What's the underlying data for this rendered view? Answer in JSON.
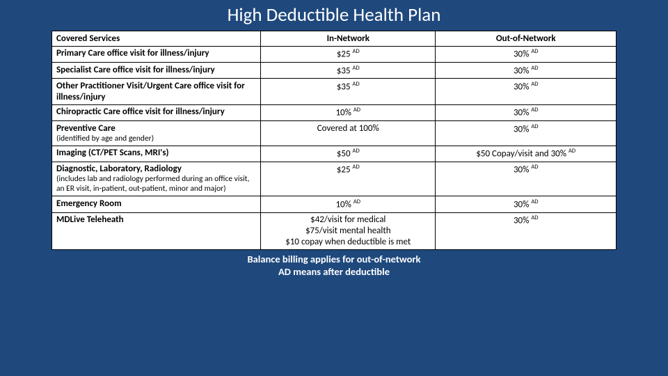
{
  "title": "High Deductible Health Plan",
  "columns": [
    "Covered Services",
    "In-Network",
    "Out-of-Network"
  ],
  "sup": "AD",
  "rows": [
    {
      "service": "Primary Care office visit for illness/injury",
      "sub": "",
      "in": "$25 ",
      "in_sup": true,
      "out": "30% ",
      "out_sup": true
    },
    {
      "service": "Specialist Care office visit for illness/injury",
      "sub": "",
      "in": "$35 ",
      "in_sup": true,
      "out": "30% ",
      "out_sup": true
    },
    {
      "service": "Other Practitioner Visit/Urgent Care office visit for illness/injury",
      "sub": "",
      "in": "$35 ",
      "in_sup": true,
      "out": "30% ",
      "out_sup": true
    },
    {
      "service": "Chiropractic Care office visit for illness/injury",
      "sub": "",
      "in": "10% ",
      "in_sup": true,
      "out": "30% ",
      "out_sup": true
    },
    {
      "service": "Preventive Care",
      "sub": "(identified by age and gender)",
      "in": "Covered at 100%",
      "in_sup": false,
      "out": "30% ",
      "out_sup": true
    },
    {
      "service": "Imaging (CT/PET Scans, MRI's)",
      "sub": "",
      "in": "$50 ",
      "in_sup": true,
      "out": "$50 Copay/visit and 30% ",
      "out_sup": true
    },
    {
      "service": "Diagnostic, Laboratory, Radiology",
      "sub": "(includes lab and radiology performed during an office visit, an ER visit, in-patient, out-patient, minor and major)",
      "in": "$25 ",
      "in_sup": true,
      "out": "30% ",
      "out_sup": true
    },
    {
      "service": "Emergency Room",
      "sub": "",
      "in": "10% ",
      "in_sup": true,
      "out": "30% ",
      "out_sup": true
    },
    {
      "service": "MDLive Teleheath",
      "sub": "",
      "in_multiline": [
        "$42/visit for medical",
        "$75/visit mental health",
        "$10 copay when deductible is met"
      ],
      "in_sup": false,
      "out": "30% ",
      "out_sup": true
    }
  ],
  "footnote_lines": [
    "Balance billing applies for out-of-network",
    "AD means after deductible"
  ],
  "colors": {
    "background": "#1f497d",
    "table_bg": "#ffffff",
    "border": "#000000",
    "title_text": "#ffffff"
  }
}
